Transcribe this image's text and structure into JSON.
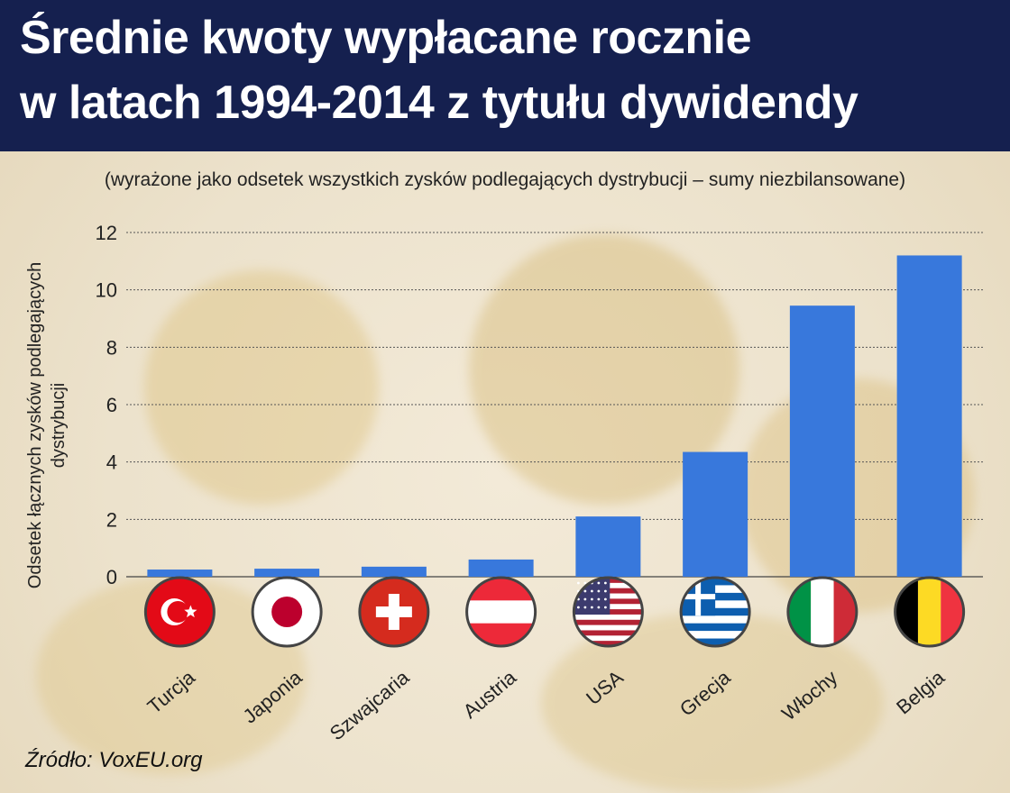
{
  "title": {
    "line1": "Średnie kwoty wypłacane rocznie",
    "line2": "w latach 1994-2014 z tytułu dywidendy"
  },
  "subtitle": "(wyrażone jako odsetek wszystkich zysków podlegających dystrybucji – sumy niezbilansowane)",
  "source": "Źródło: VoxEU.org",
  "colors": {
    "title_bg": "#15204f",
    "bar": "#3878dc",
    "grid": "#555555",
    "background": "#efe6d2"
  },
  "chart_data": {
    "type": "bar",
    "ylabel": "Odsetek łącznych zysków podlegających dystrybucji",
    "ylim": [
      0,
      12
    ],
    "yticks": [
      0,
      2,
      4,
      6,
      8,
      10,
      12
    ],
    "grid": true,
    "categories": [
      "Turcja",
      "Japonia",
      "Szwajcaria",
      "Austria",
      "USA",
      "Grecja",
      "Włochy",
      "Belgia"
    ],
    "values": [
      0.25,
      0.28,
      0.35,
      0.6,
      2.1,
      4.35,
      9.45,
      11.2
    ],
    "flags": [
      "turkey-flag-icon",
      "japan-flag-icon",
      "switzerland-flag-icon",
      "austria-flag-icon",
      "usa-flag-icon",
      "greece-flag-icon",
      "italy-flag-icon",
      "belgium-flag-icon"
    ]
  }
}
